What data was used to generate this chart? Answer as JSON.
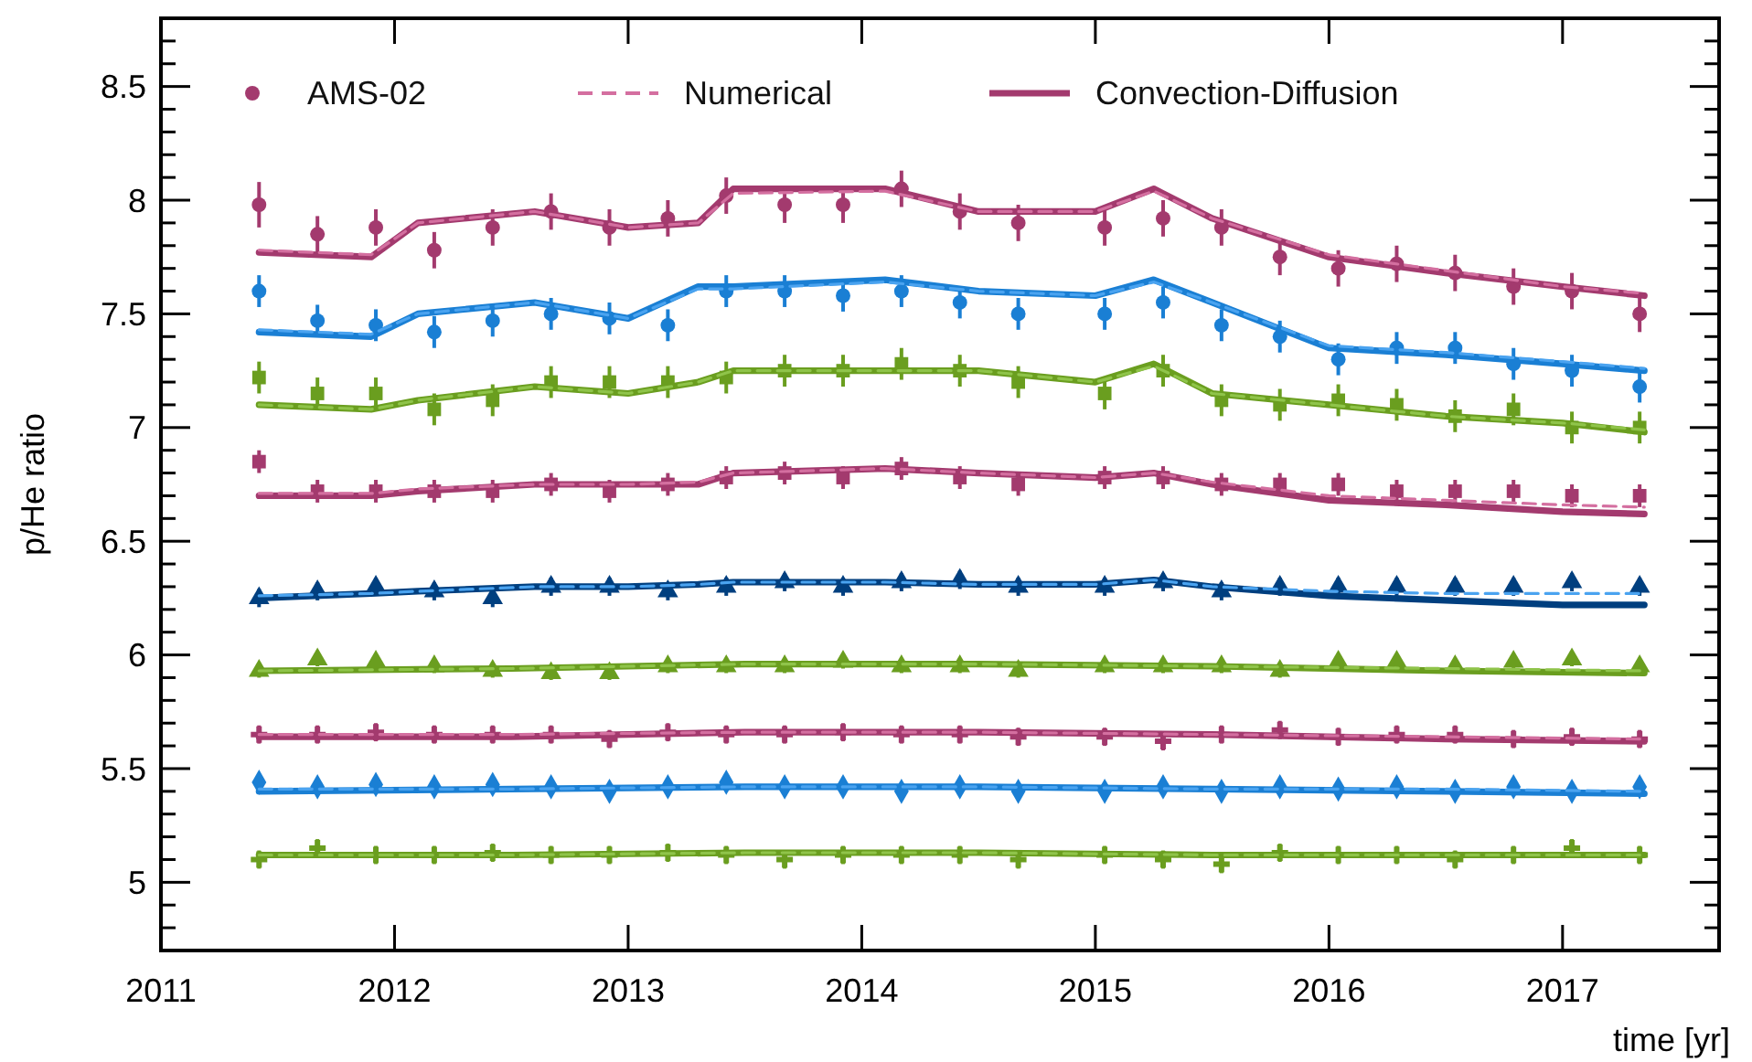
{
  "chart_data": {
    "type": "scatter",
    "xlabel": "time [yr]",
    "ylabel": "p/He ratio",
    "legend": "top left",
    "xlim": [
      2011,
      2017.67
    ],
    "ylim": [
      4.7,
      8.8
    ],
    "xticks": [
      2011,
      2012,
      2013,
      2014,
      2015,
      2016,
      2017
    ],
    "yticks": [
      {
        "value": 4.7,
        "label": null
      },
      {
        "value": 4.8,
        "label": null
      },
      {
        "value": 4.9,
        "label": null
      },
      5,
      {
        "value": 5.1,
        "label": null
      },
      {
        "value": 5.2,
        "label": null
      },
      {
        "value": 5.3,
        "label": null
      },
      {
        "value": 5.4,
        "label": null
      },
      5.5,
      {
        "value": 5.6,
        "label": null
      },
      {
        "value": 5.7,
        "label": null
      },
      {
        "value": 5.8,
        "label": null
      },
      {
        "value": 5.9,
        "label": null
      },
      6,
      {
        "value": 6.1,
        "label": null
      },
      {
        "value": 6.2,
        "label": null
      },
      {
        "value": 6.3,
        "label": null
      },
      {
        "value": 6.4,
        "label": null
      },
      6.5,
      {
        "value": 6.6,
        "label": null
      },
      {
        "value": 6.7,
        "label": null
      },
      {
        "value": 6.8,
        "label": null
      },
      {
        "value": 6.9,
        "label": null
      },
      7,
      {
        "value": 7.1,
        "label": null
      },
      {
        "value": 7.2,
        "label": null
      },
      {
        "value": 7.3,
        "label": null
      },
      {
        "value": 7.4,
        "label": null
      },
      7.5,
      {
        "value": 7.6,
        "label": null
      },
      {
        "value": 7.7,
        "label": null
      },
      {
        "value": 7.8,
        "label": null
      },
      {
        "value": 7.9,
        "label": null
      },
      8,
      {
        "value": 8.1,
        "label": null
      },
      {
        "value": 8.2,
        "label": null
      },
      {
        "value": 8.3,
        "label": null
      },
      {
        "value": 8.4,
        "label": null
      },
      8.5,
      {
        "value": 8.6,
        "label": null
      },
      {
        "value": 8.7,
        "label": null
      }
    ],
    "x": [
      2011.42,
      2011.67,
      2011.92,
      2012.17,
      2012.42,
      2012.67,
      2012.92,
      2013.17,
      2013.42,
      2013.67,
      2013.92,
      2014.17,
      2014.42,
      2014.67,
      2015.04,
      2015.29,
      2015.54,
      2015.79,
      2016.04,
      2016.29,
      2016.54,
      2016.79,
      2017.04,
      2017.33
    ],
    "series": [
      {
        "name": "AMS-02",
        "color": "#a33a6e",
        "marker": "circle",
        "values": [
          7.98,
          7.85,
          7.88,
          7.78,
          7.88,
          7.95,
          7.88,
          7.92,
          8.02,
          7.98,
          7.98,
          8.05,
          7.95,
          7.9,
          7.88,
          7.92,
          7.88,
          7.75,
          7.7,
          7.72,
          7.68,
          7.62,
          7.6,
          7.5
        ],
        "errors": [
          0.1,
          0.08,
          0.08,
          0.08,
          0.08,
          0.08,
          0.08,
          0.08,
          0.08,
          0.08,
          0.08,
          0.08,
          0.08,
          0.08,
          0.08,
          0.08,
          0.08,
          0.08,
          0.08,
          0.08,
          0.08,
          0.08,
          0.08,
          0.08
        ]
      },
      {
        "color": "#1a7fd4",
        "marker": "circle",
        "values": [
          7.6,
          7.47,
          7.45,
          7.42,
          7.47,
          7.5,
          7.48,
          7.45,
          7.6,
          7.6,
          7.58,
          7.6,
          7.55,
          7.5,
          7.5,
          7.55,
          7.45,
          7.4,
          7.3,
          7.35,
          7.35,
          7.28,
          7.25,
          7.18
        ],
        "errors": [
          0.07,
          0.07,
          0.07,
          0.07,
          0.07,
          0.07,
          0.07,
          0.07,
          0.07,
          0.07,
          0.07,
          0.07,
          0.07,
          0.07,
          0.07,
          0.07,
          0.07,
          0.07,
          0.07,
          0.07,
          0.07,
          0.07,
          0.07,
          0.07
        ]
      },
      {
        "color": "#6a9e1f",
        "marker": "square",
        "values": [
          7.22,
          7.15,
          7.15,
          7.08,
          7.12,
          7.2,
          7.2,
          7.2,
          7.22,
          7.25,
          7.25,
          7.28,
          7.25,
          7.2,
          7.15,
          7.25,
          7.12,
          7.1,
          7.12,
          7.1,
          7.05,
          7.08,
          7.0,
          7.0
        ],
        "errors": [
          0.07,
          0.07,
          0.07,
          0.07,
          0.07,
          0.07,
          0.07,
          0.07,
          0.07,
          0.07,
          0.07,
          0.07,
          0.07,
          0.07,
          0.07,
          0.07,
          0.07,
          0.07,
          0.07,
          0.07,
          0.07,
          0.07,
          0.07,
          0.07
        ]
      },
      {
        "color": "#a33a6e",
        "marker": "square",
        "values": [
          6.85,
          6.72,
          6.72,
          6.72,
          6.72,
          6.75,
          6.72,
          6.75,
          6.78,
          6.8,
          6.78,
          6.82,
          6.78,
          6.75,
          6.78,
          6.78,
          6.75,
          6.75,
          6.75,
          6.72,
          6.72,
          6.72,
          6.7,
          6.7
        ],
        "errors": [
          0.05,
          0.05,
          0.05,
          0.05,
          0.05,
          0.05,
          0.05,
          0.05,
          0.05,
          0.05,
          0.05,
          0.05,
          0.05,
          0.05,
          0.05,
          0.05,
          0.05,
          0.05,
          0.05,
          0.05,
          0.05,
          0.05,
          0.05,
          0.05
        ]
      },
      {
        "color": "#003f7f",
        "marker": "triangle",
        "values": [
          6.25,
          6.28,
          6.3,
          6.28,
          6.25,
          6.3,
          6.3,
          6.28,
          6.3,
          6.32,
          6.3,
          6.32,
          6.33,
          6.3,
          6.3,
          6.32,
          6.28,
          6.3,
          6.3,
          6.3,
          6.3,
          6.3,
          6.32,
          6.3
        ],
        "errors": [
          0.04,
          0.04,
          0.04,
          0.04,
          0.04,
          0.04,
          0.04,
          0.04,
          0.04,
          0.04,
          0.04,
          0.04,
          0.04,
          0.04,
          0.04,
          0.04,
          0.04,
          0.04,
          0.04,
          0.04,
          0.04,
          0.04,
          0.04,
          0.04
        ]
      },
      {
        "color": "#6a9e1f",
        "marker": "triangle",
        "values": [
          5.93,
          5.98,
          5.97,
          5.95,
          5.93,
          5.92,
          5.92,
          5.95,
          5.95,
          5.95,
          5.97,
          5.95,
          5.95,
          5.93,
          5.95,
          5.95,
          5.95,
          5.93,
          5.97,
          5.97,
          5.95,
          5.97,
          5.98,
          5.95
        ],
        "errors": [
          0.03,
          0.03,
          0.03,
          0.03,
          0.03,
          0.03,
          0.03,
          0.03,
          0.03,
          0.03,
          0.03,
          0.03,
          0.03,
          0.03,
          0.03,
          0.03,
          0.03,
          0.03,
          0.03,
          0.03,
          0.03,
          0.03,
          0.03,
          0.03
        ]
      },
      {
        "color": "#a33a6e",
        "marker": "cross",
        "values": [
          5.65,
          5.65,
          5.66,
          5.65,
          5.65,
          5.65,
          5.63,
          5.66,
          5.65,
          5.65,
          5.66,
          5.65,
          5.65,
          5.64,
          5.64,
          5.62,
          5.65,
          5.67,
          5.64,
          5.65,
          5.65,
          5.63,
          5.64,
          5.63
        ],
        "errors": [
          0.04,
          0.04,
          0.04,
          0.04,
          0.04,
          0.04,
          0.04,
          0.04,
          0.04,
          0.04,
          0.04,
          0.04,
          0.04,
          0.04,
          0.04,
          0.04,
          0.04,
          0.04,
          0.04,
          0.04,
          0.04,
          0.04,
          0.04,
          0.04
        ]
      },
      {
        "color": "#1a7fd4",
        "marker": "diamond",
        "values": [
          5.44,
          5.42,
          5.43,
          5.42,
          5.43,
          5.42,
          5.4,
          5.42,
          5.44,
          5.42,
          5.42,
          5.4,
          5.42,
          5.4,
          5.4,
          5.42,
          5.4,
          5.42,
          5.41,
          5.42,
          5.4,
          5.42,
          5.4,
          5.42
        ],
        "errors": [
          0.03,
          0.03,
          0.03,
          0.03,
          0.03,
          0.03,
          0.03,
          0.03,
          0.03,
          0.03,
          0.03,
          0.03,
          0.03,
          0.03,
          0.03,
          0.03,
          0.03,
          0.03,
          0.03,
          0.03,
          0.03,
          0.03,
          0.03,
          0.03
        ]
      },
      {
        "color": "#6a9e1f",
        "marker": "cross",
        "values": [
          5.1,
          5.15,
          5.12,
          5.12,
          5.13,
          5.12,
          5.12,
          5.13,
          5.12,
          5.1,
          5.12,
          5.12,
          5.12,
          5.1,
          5.12,
          5.1,
          5.08,
          5.13,
          5.12,
          5.12,
          5.1,
          5.12,
          5.15,
          5.12
        ],
        "errors": [
          0.04,
          0.04,
          0.04,
          0.04,
          0.04,
          0.04,
          0.04,
          0.04,
          0.04,
          0.04,
          0.04,
          0.04,
          0.04,
          0.04,
          0.04,
          0.04,
          0.04,
          0.04,
          0.04,
          0.04,
          0.04,
          0.04,
          0.04,
          0.04
        ]
      },
      {
        "name": "Numerical",
        "type": "line",
        "line_style": "dashed",
        "color": "#d46fa0",
        "x": [
          2011.42,
          2011.9,
          2012.1,
          2012.6,
          2013.0,
          2013.3,
          2013.45,
          2014.1,
          2014.5,
          2015.0,
          2015.25,
          2015.5,
          2016.0,
          2016.5,
          2017.0,
          2017.35
        ],
        "values": [
          7.78,
          7.76,
          7.9,
          7.95,
          7.88,
          7.9,
          8.03,
          8.04,
          7.95,
          7.95,
          8.04,
          7.92,
          7.76,
          7.69,
          7.62,
          7.59
        ]
      },
      {
        "type": "line",
        "line_style": "dashed",
        "color": "#4aa3f0",
        "x": [
          2011.42,
          2011.9,
          2012.1,
          2012.6,
          2013.0,
          2013.3,
          2013.45,
          2014.1,
          2014.5,
          2015.0,
          2015.25,
          2015.5,
          2016.0,
          2016.5,
          2017.0,
          2017.35
        ],
        "values": [
          7.43,
          7.41,
          7.5,
          7.55,
          7.48,
          7.61,
          7.61,
          7.64,
          7.6,
          7.58,
          7.64,
          7.55,
          7.36,
          7.33,
          7.29,
          7.26
        ]
      },
      {
        "type": "line",
        "line_style": "dashed",
        "color": "#8fc44a",
        "x": [
          2011.42,
          2011.9,
          2012.1,
          2012.6,
          2013.0,
          2013.3,
          2013.45,
          2014.1,
          2014.5,
          2015.0,
          2015.25,
          2015.5,
          2016.0,
          2016.5,
          2017.0,
          2017.35
        ],
        "values": [
          7.1,
          7.08,
          7.12,
          7.18,
          7.15,
          7.2,
          7.25,
          7.25,
          7.25,
          7.2,
          7.27,
          7.15,
          7.1,
          7.05,
          7.02,
          6.99
        ]
      },
      {
        "type": "line",
        "line_style": "dashed",
        "color": "#d46fa0",
        "x": [
          2011.42,
          2011.9,
          2012.1,
          2012.6,
          2013.0,
          2013.3,
          2013.45,
          2014.1,
          2014.5,
          2015.0,
          2015.25,
          2015.5,
          2016.0,
          2016.5,
          2017.0,
          2017.35
        ],
        "values": [
          6.71,
          6.71,
          6.73,
          6.75,
          6.75,
          6.76,
          6.8,
          6.82,
          6.8,
          6.78,
          6.8,
          6.76,
          6.7,
          6.68,
          6.66,
          6.65
        ]
      },
      {
        "type": "line",
        "line_style": "dashed",
        "color": "#4aa3f0",
        "x": [
          2011.42,
          2011.9,
          2012.1,
          2012.6,
          2013.0,
          2013.3,
          2013.45,
          2014.1,
          2014.5,
          2015.0,
          2015.25,
          2015.5,
          2016.0,
          2016.5,
          2017.0,
          2017.35
        ],
        "values": [
          6.26,
          6.27,
          6.28,
          6.3,
          6.3,
          6.31,
          6.32,
          6.32,
          6.31,
          6.31,
          6.33,
          6.3,
          6.28,
          6.27,
          6.27,
          6.27
        ]
      },
      {
        "type": "line",
        "line_style": "dashed",
        "color": "#8fc44a",
        "x": [
          2011.42,
          2012.5,
          2013.5,
          2014.5,
          2015.5,
          2016.5,
          2017.35
        ],
        "values": [
          5.93,
          5.94,
          5.96,
          5.96,
          5.95,
          5.94,
          5.93
        ]
      },
      {
        "type": "line",
        "line_style": "dashed",
        "color": "#d46fa0",
        "x": [
          2011.42,
          2012.5,
          2013.5,
          2014.5,
          2015.5,
          2016.5,
          2017.35
        ],
        "values": [
          5.65,
          5.65,
          5.66,
          5.66,
          5.65,
          5.64,
          5.63
        ]
      },
      {
        "type": "line",
        "line_style": "dashed",
        "color": "#4aa3f0",
        "x": [
          2011.42,
          2012.5,
          2013.5,
          2014.5,
          2015.5,
          2016.5,
          2017.35
        ],
        "values": [
          5.41,
          5.41,
          5.42,
          5.42,
          5.41,
          5.41,
          5.4
        ]
      },
      {
        "type": "line",
        "line_style": "dashed",
        "color": "#8fc44a",
        "x": [
          2011.42,
          2012.5,
          2013.5,
          2014.5,
          2015.5,
          2016.5,
          2017.35
        ],
        "values": [
          5.12,
          5.12,
          5.13,
          5.13,
          5.12,
          5.12,
          5.12
        ]
      },
      {
        "name": "Convection-Diffusion",
        "type": "line",
        "line_style": "solid",
        "color": "#a33a6e",
        "x": [
          2011.42,
          2011.9,
          2012.1,
          2012.6,
          2013.0,
          2013.3,
          2013.45,
          2014.1,
          2014.5,
          2015.0,
          2015.25,
          2015.5,
          2016.0,
          2016.5,
          2017.0,
          2017.35
        ],
        "values": [
          7.77,
          7.75,
          7.9,
          7.95,
          7.88,
          7.9,
          8.05,
          8.05,
          7.95,
          7.95,
          8.05,
          7.92,
          7.75,
          7.68,
          7.62,
          7.58
        ]
      },
      {
        "type": "line",
        "line_style": "solid",
        "color": "#1a7fd4",
        "x": [
          2011.42,
          2011.9,
          2012.1,
          2012.6,
          2013.0,
          2013.3,
          2013.45,
          2014.1,
          2014.5,
          2015.0,
          2015.25,
          2015.5,
          2016.0,
          2016.5,
          2017.0,
          2017.35
        ],
        "values": [
          7.42,
          7.4,
          7.5,
          7.55,
          7.48,
          7.62,
          7.62,
          7.65,
          7.6,
          7.58,
          7.65,
          7.55,
          7.35,
          7.32,
          7.28,
          7.25
        ]
      },
      {
        "type": "line",
        "line_style": "solid",
        "color": "#6a9e1f",
        "x": [
          2011.42,
          2011.9,
          2012.1,
          2012.6,
          2013.0,
          2013.3,
          2013.45,
          2014.1,
          2014.5,
          2015.0,
          2015.25,
          2015.5,
          2016.0,
          2016.5,
          2017.0,
          2017.35
        ],
        "values": [
          7.1,
          7.08,
          7.12,
          7.18,
          7.15,
          7.2,
          7.25,
          7.25,
          7.25,
          7.2,
          7.28,
          7.15,
          7.1,
          7.05,
          7.02,
          6.98
        ]
      },
      {
        "type": "line",
        "line_style": "solid",
        "color": "#a33a6e",
        "x": [
          2011.42,
          2011.9,
          2012.1,
          2012.6,
          2013.0,
          2013.3,
          2013.45,
          2014.1,
          2014.5,
          2015.0,
          2015.25,
          2015.5,
          2016.0,
          2016.5,
          2017.0,
          2017.35
        ],
        "values": [
          6.7,
          6.7,
          6.72,
          6.75,
          6.75,
          6.75,
          6.8,
          6.82,
          6.8,
          6.78,
          6.8,
          6.75,
          6.68,
          6.66,
          6.63,
          6.62
        ]
      },
      {
        "type": "line",
        "line_style": "solid",
        "color": "#003f7f",
        "x": [
          2011.42,
          2011.9,
          2012.1,
          2012.6,
          2013.0,
          2013.3,
          2013.45,
          2014.1,
          2014.5,
          2015.0,
          2015.25,
          2015.5,
          2016.0,
          2016.5,
          2017.0,
          2017.35
        ],
        "values": [
          6.25,
          6.27,
          6.28,
          6.3,
          6.3,
          6.31,
          6.32,
          6.32,
          6.31,
          6.31,
          6.33,
          6.3,
          6.26,
          6.24,
          6.22,
          6.22
        ]
      },
      {
        "type": "line",
        "line_style": "solid",
        "color": "#6a9e1f",
        "x": [
          2011.42,
          2012.5,
          2013.5,
          2014.5,
          2015.5,
          2016.5,
          2017.35
        ],
        "values": [
          5.93,
          5.94,
          5.96,
          5.96,
          5.95,
          5.93,
          5.92
        ]
      },
      {
        "type": "line",
        "line_style": "solid",
        "color": "#a33a6e",
        "x": [
          2011.42,
          2012.5,
          2013.5,
          2014.5,
          2015.5,
          2016.5,
          2017.35
        ],
        "values": [
          5.64,
          5.64,
          5.66,
          5.66,
          5.65,
          5.63,
          5.62
        ]
      },
      {
        "type": "line",
        "line_style": "solid",
        "color": "#1a7fd4",
        "x": [
          2011.42,
          2012.5,
          2013.5,
          2014.5,
          2015.5,
          2016.5,
          2017.35
        ],
        "values": [
          5.4,
          5.41,
          5.42,
          5.42,
          5.41,
          5.4,
          5.39
        ]
      },
      {
        "type": "line",
        "line_style": "solid",
        "color": "#6a9e1f",
        "x": [
          2011.42,
          2012.5,
          2013.5,
          2014.5,
          2015.5,
          2016.5,
          2017.35
        ],
        "values": [
          5.12,
          5.12,
          5.13,
          5.13,
          5.12,
          5.12,
          5.12
        ]
      }
    ]
  }
}
